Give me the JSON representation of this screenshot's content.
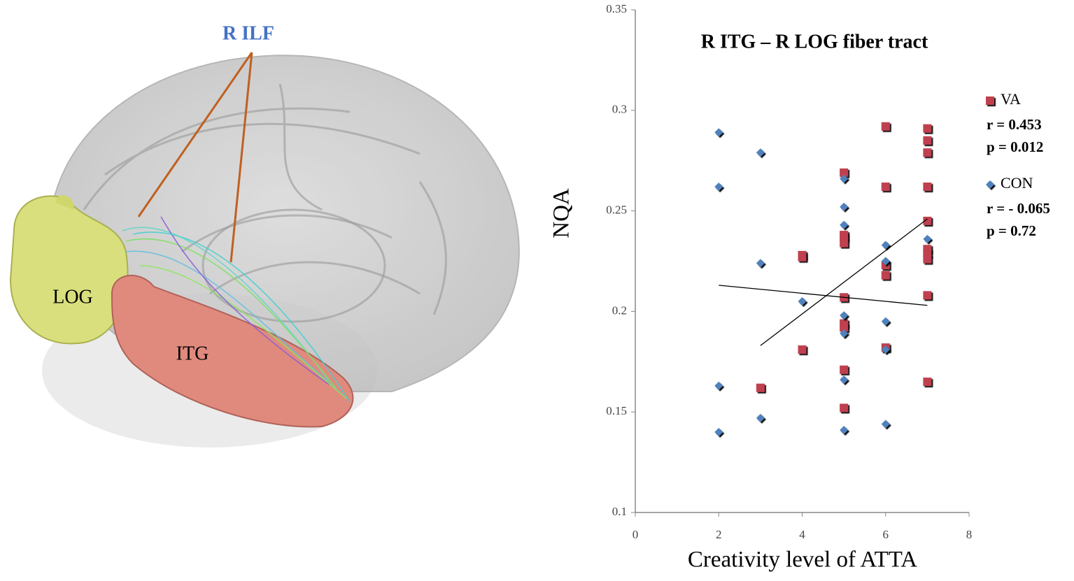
{
  "brain_labels": {
    "tract": "R ILF",
    "regions": [
      "LOG",
      "ITG"
    ]
  },
  "chart_data": {
    "type": "scatter",
    "title": "R ITG – R LOG fiber tract",
    "x_label": "Creativity level of ATTA",
    "y_label": "NQA",
    "xlim": [
      0,
      8
    ],
    "xticks": [
      0,
      2,
      4,
      6,
      8
    ],
    "ylim": [
      0.1,
      0.35
    ],
    "yticks": [
      0.1,
      0.15,
      0.2,
      0.25,
      0.3,
      0.35
    ],
    "series": [
      {
        "name": "VA",
        "color": "#c0404f",
        "marker": "square",
        "stats": [
          "r = 0.453",
          "p = 0.012"
        ],
        "x": [
          3,
          4,
          4,
          4,
          5,
          5,
          5,
          5,
          5,
          5,
          5,
          5,
          5,
          6,
          6,
          6,
          6,
          6,
          7,
          7,
          7,
          7,
          7,
          7,
          7,
          7,
          7,
          7
        ],
        "values": [
          0.162,
          0.228,
          0.227,
          0.181,
          0.269,
          0.238,
          0.237,
          0.234,
          0.207,
          0.194,
          0.192,
          0.171,
          0.152,
          0.292,
          0.262,
          0.223,
          0.218,
          0.182,
          0.291,
          0.285,
          0.279,
          0.262,
          0.245,
          0.231,
          0.229,
          0.226,
          0.208,
          0.165
        ],
        "trend": {
          "x": [
            3,
            7
          ],
          "values": [
            0.183,
            0.246
          ]
        }
      },
      {
        "name": "CON",
        "color": "#4f81bd",
        "marker": "diamond",
        "stats": [
          "r = - 0.065",
          "p = 0.72"
        ],
        "x": [
          2,
          2,
          2,
          2,
          3,
          3,
          3,
          4,
          5,
          5,
          5,
          5,
          5,
          5,
          5,
          6,
          6,
          6,
          6,
          6,
          7
        ],
        "values": [
          0.289,
          0.262,
          0.163,
          0.14,
          0.279,
          0.224,
          0.147,
          0.205,
          0.266,
          0.252,
          0.243,
          0.198,
          0.189,
          0.166,
          0.141,
          0.233,
          0.225,
          0.195,
          0.181,
          0.144,
          0.236
        ],
        "trend": {
          "x": [
            2,
            7
          ],
          "values": [
            0.213,
            0.203
          ]
        }
      }
    ]
  }
}
